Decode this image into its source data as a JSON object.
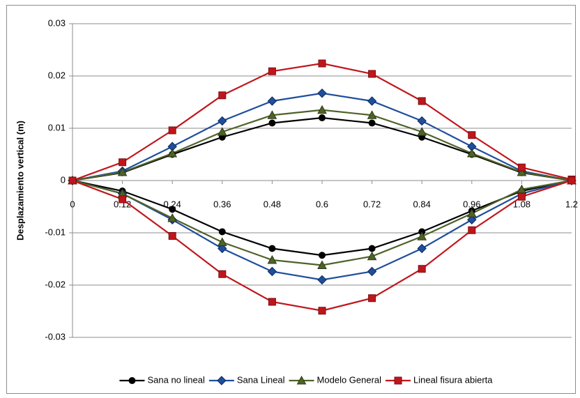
{
  "chart_data": {
    "type": "line",
    "y_label": "Desplazamiento vertical (m)",
    "x": [
      0,
      0.12,
      0.24,
      0.36,
      0.48,
      0.6,
      0.72,
      0.84,
      0.96,
      1.08,
      1.2
    ],
    "xlim": [
      0,
      1.2
    ],
    "xticks": [
      0,
      0.12,
      0.24,
      0.36,
      0.48,
      0.6,
      0.72,
      0.84,
      0.96,
      1.08,
      1.2
    ],
    "ylim": [
      -0.03,
      0.03
    ],
    "yticks": [
      0.03,
      0.02,
      0.01,
      0,
      -0.01,
      -0.02,
      -0.03
    ],
    "grid": true,
    "legend": "bottom",
    "series": [
      {
        "name": "Sana no lineal",
        "color": "#000000",
        "marker": "circle",
        "values": [
          0,
          0.0015,
          0.005,
          0.0083,
          0.011,
          0.012,
          0.011,
          0.0083,
          0.005,
          0.0015,
          0
        ],
        "lower_values": [
          0,
          -0.002,
          -0.0055,
          -0.0098,
          -0.013,
          -0.0143,
          -0.013,
          -0.0098,
          -0.0058,
          -0.002,
          0
        ]
      },
      {
        "name": "Sana Lineal",
        "color": "#1f4e9c",
        "marker": "diamond",
        "values": [
          0,
          0.0018,
          0.0065,
          0.0114,
          0.0152,
          0.0167,
          0.0152,
          0.0114,
          0.0065,
          0.0018,
          0
        ],
        "lower_values": [
          0,
          -0.0025,
          -0.0075,
          -0.013,
          -0.0174,
          -0.019,
          -0.0174,
          -0.013,
          -0.0075,
          -0.0025,
          0
        ]
      },
      {
        "name": "Modelo General",
        "color": "#4f6228",
        "marker": "triangle",
        "values": [
          0,
          0.0016,
          0.0052,
          0.0093,
          0.0125,
          0.0135,
          0.0125,
          0.0093,
          0.0052,
          0.0016,
          0
        ],
        "lower_values": [
          0,
          -0.0025,
          -0.0072,
          -0.0118,
          -0.0152,
          -0.0162,
          -0.0145,
          -0.0107,
          -0.0063,
          -0.0017,
          0
        ]
      },
      {
        "name": "Lineal fisura abierta",
        "color": "#c0161b",
        "marker": "square",
        "values": [
          0,
          0.0035,
          0.0096,
          0.0163,
          0.0209,
          0.0224,
          0.0204,
          0.0152,
          0.0087,
          0.0025,
          0.0002
        ],
        "lower_values": [
          0,
          -0.0036,
          -0.0106,
          -0.0179,
          -0.0232,
          -0.0249,
          -0.0225,
          -0.0169,
          -0.0095,
          -0.0031,
          0
        ]
      }
    ]
  }
}
